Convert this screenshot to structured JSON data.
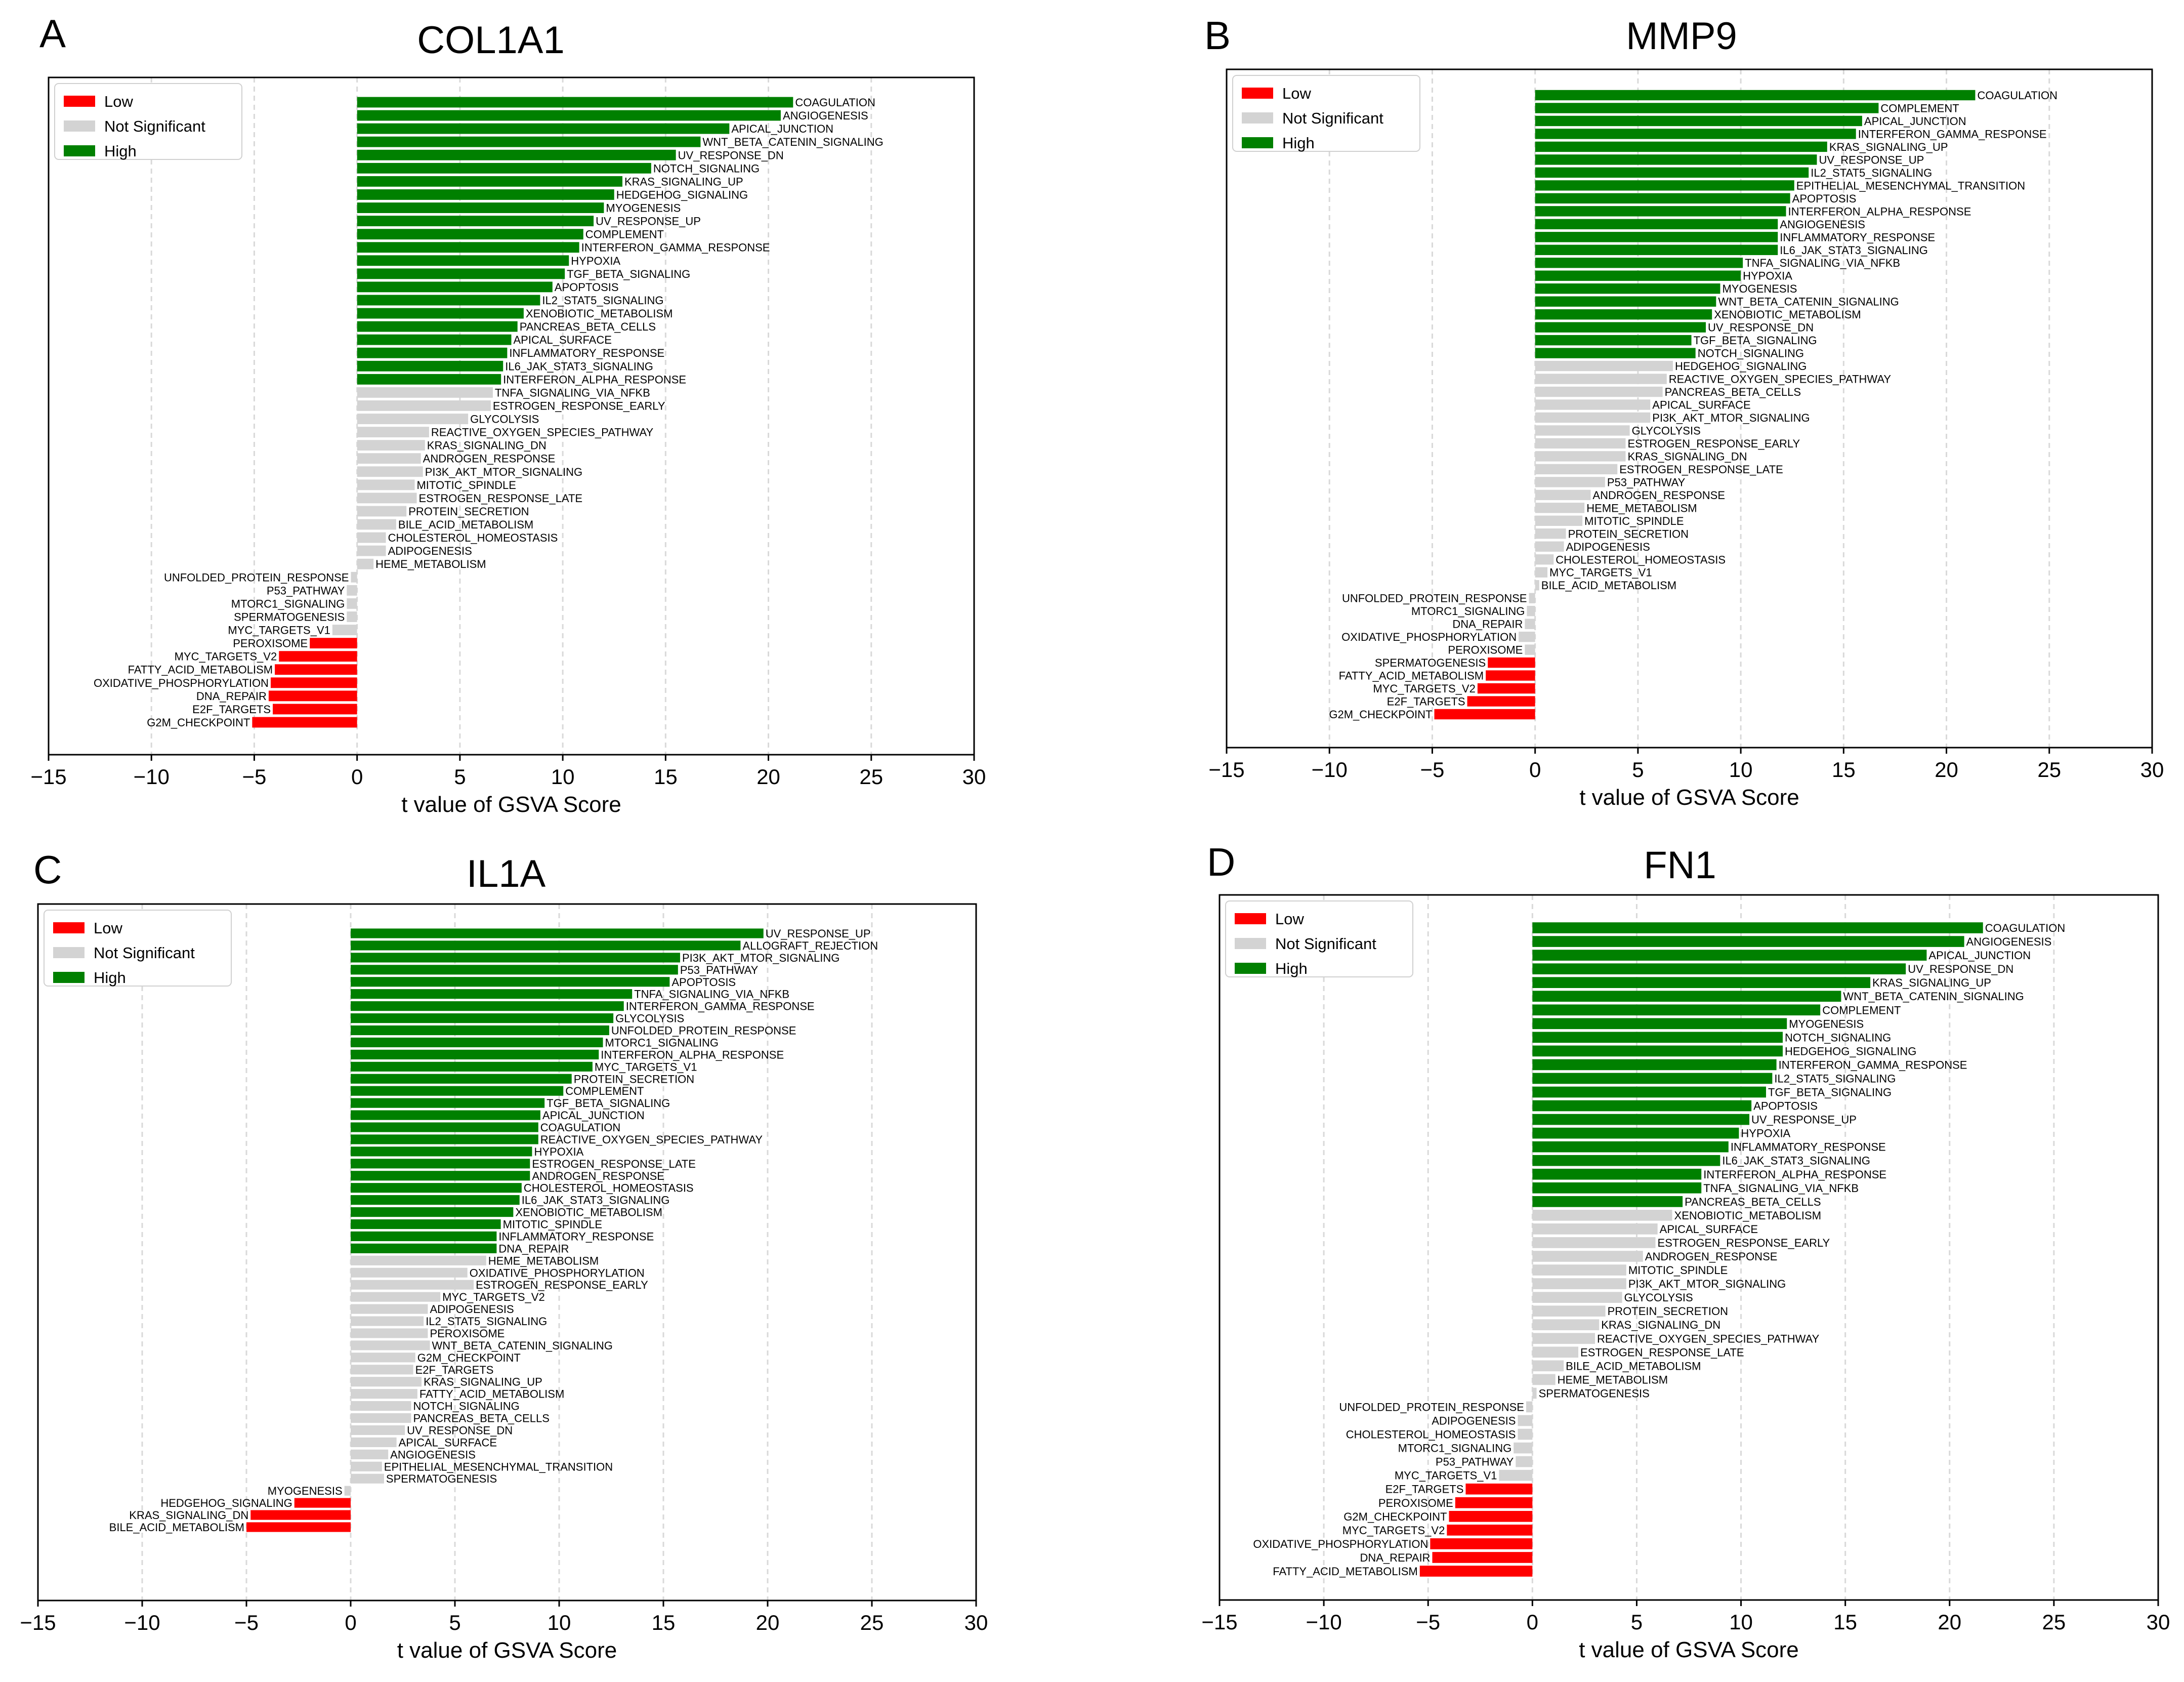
{
  "figure": {
    "colors": {
      "low": "#ff0000",
      "ns": "#d3d3d3",
      "high": "#008000",
      "grid": "#d9d9d9",
      "frame": "#000000"
    }
  },
  "chart_data": [
    {
      "panel": "A",
      "title": "COL1A1",
      "type": "bar",
      "orientation": "horizontal",
      "xlabel": "t value of GSVA Score",
      "xlim": [
        -15,
        30
      ],
      "xticks": [
        -15,
        -10,
        -5,
        0,
        5,
        10,
        15,
        20,
        25,
        30
      ],
      "tick_labels": [
        "−15",
        "−10",
        "−5",
        "0",
        "5",
        "10",
        "15",
        "20",
        "25",
        "30"
      ],
      "grid": "vertical dashed",
      "legend": {
        "position": "top-left",
        "entries": [
          "Low",
          "Not Significant",
          "High"
        ]
      },
      "categories": [
        "COAGULATION",
        "ANGIOGENESIS",
        "APICAL_JUNCTION",
        "WNT_BETA_CATENIN_SIGNALING",
        "UV_RESPONSE_DN",
        "NOTCH_SIGNALING",
        "KRAS_SIGNALING_UP",
        "HEDGEHOG_SIGNALING",
        "MYOGENESIS",
        "UV_RESPONSE_UP",
        "COMPLEMENT",
        "INTERFERON_GAMMA_RESPONSE",
        "HYPOXIA",
        "TGF_BETA_SIGNALING",
        "APOPTOSIS",
        "IL2_STAT5_SIGNALING",
        "XENOBIOTIC_METABOLISM",
        "PANCREAS_BETA_CELLS",
        "APICAL_SURFACE",
        "INFLAMMATORY_RESPONSE",
        "IL6_JAK_STAT3_SIGNALING",
        "INTERFERON_ALPHA_RESPONSE",
        "TNFA_SIGNALING_VIA_NFKB",
        "ESTROGEN_RESPONSE_EARLY",
        "GLYCOLYSIS",
        "REACTIVE_OXYGEN_SPECIES_PATHWAY",
        "KRAS_SIGNALING_DN",
        "ANDROGEN_RESPONSE",
        "PI3K_AKT_MTOR_SIGNALING",
        "MITOTIC_SPINDLE",
        "ESTROGEN_RESPONSE_LATE",
        "PROTEIN_SECRETION",
        "BILE_ACID_METABOLISM",
        "CHOLESTEROL_HOMEOSTASIS",
        "ADIPOGENESIS",
        "HEME_METABOLISM",
        "UNFOLDED_PROTEIN_RESPONSE",
        "P53_PATHWAY",
        "MTORC1_SIGNALING",
        "SPERMATOGENESIS",
        "MYC_TARGETS_V1",
        "PEROXISOME",
        "MYC_TARGETS_V2",
        "FATTY_ACID_METABOLISM",
        "OXIDATIVE_PHOSPHORYLATION",
        "DNA_REPAIR",
        "E2F_TARGETS",
        "G2M_CHECKPOINT"
      ],
      "values": [
        21.2,
        20.6,
        18.1,
        16.7,
        15.5,
        14.3,
        12.9,
        12.5,
        12.0,
        11.5,
        11.0,
        10.8,
        10.3,
        10.1,
        9.5,
        8.9,
        8.1,
        7.8,
        7.5,
        7.3,
        7.1,
        7.0,
        6.6,
        6.5,
        5.4,
        3.5,
        3.3,
        3.1,
        3.2,
        2.8,
        2.9,
        2.4,
        1.9,
        1.4,
        1.4,
        0.8,
        -0.3,
        -0.5,
        -0.5,
        -0.5,
        -1.2,
        -2.3,
        -3.8,
        -4.0,
        -4.2,
        -4.3,
        -4.1,
        -5.1
      ],
      "status": [
        "high",
        "high",
        "high",
        "high",
        "high",
        "high",
        "high",
        "high",
        "high",
        "high",
        "high",
        "high",
        "high",
        "high",
        "high",
        "high",
        "high",
        "high",
        "high",
        "high",
        "high",
        "high",
        "ns",
        "ns",
        "ns",
        "ns",
        "ns",
        "ns",
        "ns",
        "ns",
        "ns",
        "ns",
        "ns",
        "ns",
        "ns",
        "ns",
        "ns",
        "ns",
        "ns",
        "ns",
        "ns",
        "low",
        "low",
        "low",
        "low",
        "low",
        "low",
        "low"
      ]
    },
    {
      "panel": "B",
      "title": "MMP9",
      "type": "bar",
      "orientation": "horizontal",
      "xlabel": "t value of GSVA Score",
      "xlim": [
        -15,
        30
      ],
      "xticks": [
        -15,
        -10,
        -5,
        0,
        5,
        10,
        15,
        20,
        25,
        30
      ],
      "tick_labels": [
        "−15",
        "−10",
        "−5",
        "0",
        "5",
        "10",
        "15",
        "20",
        "25",
        "30"
      ],
      "grid": "vertical dashed",
      "legend": {
        "position": "top-left",
        "entries": [
          "Low",
          "Not Significant",
          "High"
        ]
      },
      "categories": [
        "COAGULATION",
        "COMPLEMENT",
        "APICAL_JUNCTION",
        "INTERFERON_GAMMA_RESPONSE",
        "KRAS_SIGNALING_UP",
        "UV_RESPONSE_UP",
        "IL2_STAT5_SIGNALING",
        "EPITHELIAL_MESENCHYMAL_TRANSITION",
        "APOPTOSIS",
        "INTERFERON_ALPHA_RESPONSE",
        "ANGIOGENESIS",
        "INFLAMMATORY_RESPONSE",
        "IL6_JAK_STAT3_SIGNALING",
        "TNFA_SIGNALING_VIA_NFKB",
        "HYPOXIA",
        "MYOGENESIS",
        "WNT_BETA_CATENIN_SIGNALING",
        "XENOBIOTIC_METABOLISM",
        "UV_RESPONSE_DN",
        "TGF_BETA_SIGNALING",
        "NOTCH_SIGNALING",
        "HEDGEHOG_SIGNALING",
        "REACTIVE_OXYGEN_SPECIES_PATHWAY",
        "PANCREAS_BETA_CELLS",
        "APICAL_SURFACE",
        "PI3K_AKT_MTOR_SIGNALING",
        "GLYCOLYSIS",
        "ESTROGEN_RESPONSE_EARLY",
        "KRAS_SIGNALING_DN",
        "ESTROGEN_RESPONSE_LATE",
        "P53_PATHWAY",
        "ANDROGEN_RESPONSE",
        "HEME_METABOLISM",
        "MITOTIC_SPINDLE",
        "PROTEIN_SECRETION",
        "ADIPOGENESIS",
        "CHOLESTEROL_HOMEOSTASIS",
        "MYC_TARGETS_V1",
        "BILE_ACID_METABOLISM",
        "UNFOLDED_PROTEIN_RESPONSE",
        "MTORC1_SIGNALING",
        "DNA_REPAIR",
        "OXIDATIVE_PHOSPHORYLATION",
        "PEROXISOME",
        "SPERMATOGENESIS",
        "FATTY_ACID_METABOLISM",
        "MYC_TARGETS_V2",
        "E2F_TARGETS",
        "G2M_CHECKPOINT"
      ],
      "values": [
        21.4,
        16.7,
        15.9,
        15.6,
        14.2,
        13.7,
        13.3,
        12.6,
        12.4,
        12.2,
        11.8,
        11.8,
        11.8,
        10.1,
        10.0,
        9.0,
        8.8,
        8.6,
        8.3,
        7.6,
        7.8,
        6.7,
        6.4,
        6.2,
        5.6,
        5.6,
        4.6,
        4.4,
        4.4,
        4.0,
        3.4,
        2.7,
        2.4,
        2.3,
        1.5,
        1.4,
        0.9,
        0.6,
        0.2,
        -0.3,
        -0.4,
        -0.5,
        -0.8,
        -0.5,
        -2.3,
        -2.4,
        -2.8,
        -3.3,
        -4.9
      ],
      "status": [
        "high",
        "high",
        "high",
        "high",
        "high",
        "high",
        "high",
        "high",
        "high",
        "high",
        "high",
        "high",
        "high",
        "high",
        "high",
        "high",
        "high",
        "high",
        "high",
        "high",
        "high",
        "ns",
        "ns",
        "ns",
        "ns",
        "ns",
        "ns",
        "ns",
        "ns",
        "ns",
        "ns",
        "ns",
        "ns",
        "ns",
        "ns",
        "ns",
        "ns",
        "ns",
        "ns",
        "ns",
        "ns",
        "ns",
        "ns",
        "ns",
        "low",
        "low",
        "low",
        "low",
        "low"
      ]
    },
    {
      "panel": "C",
      "title": "IL1A",
      "type": "bar",
      "orientation": "horizontal",
      "xlabel": "t value of GSVA Score",
      "xlim": [
        -15,
        30
      ],
      "xticks": [
        -15,
        -10,
        -5,
        0,
        5,
        10,
        15,
        20,
        25,
        30
      ],
      "tick_labels": [
        "−15",
        "−10",
        "−5",
        "0",
        "5",
        "10",
        "15",
        "20",
        "25",
        "30"
      ],
      "grid": "vertical dashed",
      "legend": {
        "position": "top-left",
        "entries": [
          "Low",
          "Not Significant",
          "High"
        ]
      },
      "categories": [
        "UV_RESPONSE_UP",
        "ALLOGRAFT_REJECTION",
        "PI3K_AKT_MTOR_SIGNALING",
        "P53_PATHWAY",
        "APOPTOSIS",
        "TNFA_SIGNALING_VIA_NFKB",
        "INTERFERON_GAMMA_RESPONSE",
        "GLYCOLYSIS",
        "UNFOLDED_PROTEIN_RESPONSE",
        "MTORC1_SIGNALING",
        "INTERFERON_ALPHA_RESPONSE",
        "MYC_TARGETS_V1",
        "PROTEIN_SECRETION",
        "COMPLEMENT",
        "TGF_BETA_SIGNALING",
        "APICAL_JUNCTION",
        "COAGULATION",
        "REACTIVE_OXYGEN_SPECIES_PATHWAY",
        "HYPOXIA",
        "ESTROGEN_RESPONSE_LATE",
        "ANDROGEN_RESPONSE",
        "CHOLESTEROL_HOMEOSTASIS",
        "IL6_JAK_STAT3_SIGNALING",
        "XENOBIOTIC_METABOLISM",
        "MITOTIC_SPINDLE",
        "INFLAMMATORY_RESPONSE",
        "DNA_REPAIR",
        "HEME_METABOLISM",
        "OXIDATIVE_PHOSPHORYLATION",
        "ESTROGEN_RESPONSE_EARLY",
        "MYC_TARGETS_V2",
        "ADIPOGENESIS",
        "IL2_STAT5_SIGNALING",
        "PEROXISOME",
        "WNT_BETA_CATENIN_SIGNALING",
        "G2M_CHECKPOINT",
        "E2F_TARGETS",
        "KRAS_SIGNALING_UP",
        "FATTY_ACID_METABOLISM",
        "NOTCH_SIGNALING",
        "PANCREAS_BETA_CELLS",
        "UV_RESPONSE_DN",
        "APICAL_SURFACE",
        "ANGIOGENESIS",
        "EPITHELIAL_MESENCHYMAL_TRANSITION",
        "SPERMATOGENESIS",
        "MYOGENESIS",
        "HEDGEHOG_SIGNALING",
        "KRAS_SIGNALING_DN",
        "BILE_ACID_METABOLISM"
      ],
      "values": [
        19.8,
        18.7,
        15.8,
        15.7,
        15.3,
        13.5,
        13.1,
        12.6,
        12.4,
        12.1,
        11.9,
        11.6,
        10.6,
        10.2,
        9.3,
        9.1,
        9.0,
        9.0,
        8.7,
        8.6,
        8.6,
        8.2,
        8.1,
        7.8,
        7.2,
        7.0,
        7.0,
        6.5,
        5.6,
        5.9,
        4.3,
        3.7,
        3.5,
        3.7,
        3.8,
        3.1,
        3.0,
        3.4,
        3.2,
        2.9,
        2.9,
        2.6,
        2.2,
        1.8,
        1.5,
        1.6,
        -0.3,
        -2.7,
        -4.8,
        -5.0
      ],
      "status": [
        "high",
        "high",
        "high",
        "high",
        "high",
        "high",
        "high",
        "high",
        "high",
        "high",
        "high",
        "high",
        "high",
        "high",
        "high",
        "high",
        "high",
        "high",
        "high",
        "high",
        "high",
        "high",
        "high",
        "high",
        "high",
        "high",
        "high",
        "ns",
        "ns",
        "ns",
        "ns",
        "ns",
        "ns",
        "ns",
        "ns",
        "ns",
        "ns",
        "ns",
        "ns",
        "ns",
        "ns",
        "ns",
        "ns",
        "ns",
        "ns",
        "ns",
        "ns",
        "low",
        "low",
        "low"
      ]
    },
    {
      "panel": "D",
      "title": "FN1",
      "type": "bar",
      "orientation": "horizontal",
      "xlabel": "t value of GSVA Score",
      "xlim": [
        -15,
        30
      ],
      "xticks": [
        -15,
        -10,
        -5,
        0,
        5,
        10,
        15,
        20,
        25,
        30
      ],
      "tick_labels": [
        "−15",
        "−10",
        "−5",
        "0",
        "5",
        "10",
        "15",
        "20",
        "25",
        "30"
      ],
      "grid": "vertical dashed",
      "legend": {
        "position": "top-left",
        "entries": [
          "Low",
          "Not Significant",
          "High"
        ]
      },
      "categories": [
        "COAGULATION",
        "ANGIOGENESIS",
        "APICAL_JUNCTION",
        "UV_RESPONSE_DN",
        "KRAS_SIGNALING_UP",
        "WNT_BETA_CATENIN_SIGNALING",
        "COMPLEMENT",
        "MYOGENESIS",
        "NOTCH_SIGNALING",
        "HEDGEHOG_SIGNALING",
        "INTERFERON_GAMMA_RESPONSE",
        "IL2_STAT5_SIGNALING",
        "TGF_BETA_SIGNALING",
        "APOPTOSIS",
        "UV_RESPONSE_UP",
        "HYPOXIA",
        "INFLAMMATORY_RESPONSE",
        "IL6_JAK_STAT3_SIGNALING",
        "INTERFERON_ALPHA_RESPONSE",
        "TNFA_SIGNALING_VIA_NFKB",
        "PANCREAS_BETA_CELLS",
        "XENOBIOTIC_METABOLISM",
        "APICAL_SURFACE",
        "ESTROGEN_RESPONSE_EARLY",
        "ANDROGEN_RESPONSE",
        "MITOTIC_SPINDLE",
        "PI3K_AKT_MTOR_SIGNALING",
        "GLYCOLYSIS",
        "PROTEIN_SECRETION",
        "KRAS_SIGNALING_DN",
        "REACTIVE_OXYGEN_SPECIES_PATHWAY",
        "ESTROGEN_RESPONSE_LATE",
        "BILE_ACID_METABOLISM",
        "HEME_METABOLISM",
        "SPERMATOGENESIS",
        "UNFOLDED_PROTEIN_RESPONSE",
        "ADIPOGENESIS",
        "CHOLESTEROL_HOMEOSTASIS",
        "MTORC1_SIGNALING",
        "P53_PATHWAY",
        "MYC_TARGETS_V1",
        "E2F_TARGETS",
        "PEROXISOME",
        "G2M_CHECKPOINT",
        "MYC_TARGETS_V2",
        "OXIDATIVE_PHOSPHORYLATION",
        "DNA_REPAIR",
        "FATTY_ACID_METABOLISM"
      ],
      "values": [
        21.6,
        20.7,
        18.9,
        17.9,
        16.2,
        14.8,
        13.8,
        12.2,
        12.0,
        12.0,
        11.7,
        11.5,
        11.2,
        10.5,
        10.4,
        9.9,
        9.4,
        9.0,
        8.1,
        8.1,
        7.2,
        6.7,
        6.0,
        5.9,
        5.3,
        4.5,
        4.5,
        4.3,
        3.5,
        3.2,
        3.0,
        2.2,
        1.5,
        1.1,
        0.2,
        -0.3,
        -0.7,
        -0.7,
        -0.9,
        -0.8,
        -1.6,
        -3.2,
        -3.7,
        -4.0,
        -4.1,
        -4.9,
        -4.8,
        -5.4
      ],
      "status": [
        "high",
        "high",
        "high",
        "high",
        "high",
        "high",
        "high",
        "high",
        "high",
        "high",
        "high",
        "high",
        "high",
        "high",
        "high",
        "high",
        "high",
        "high",
        "high",
        "high",
        "high",
        "ns",
        "ns",
        "ns",
        "ns",
        "ns",
        "ns",
        "ns",
        "ns",
        "ns",
        "ns",
        "ns",
        "ns",
        "ns",
        "ns",
        "ns",
        "ns",
        "ns",
        "ns",
        "ns",
        "ns",
        "low",
        "low",
        "low",
        "low",
        "low",
        "low",
        "low"
      ]
    }
  ]
}
